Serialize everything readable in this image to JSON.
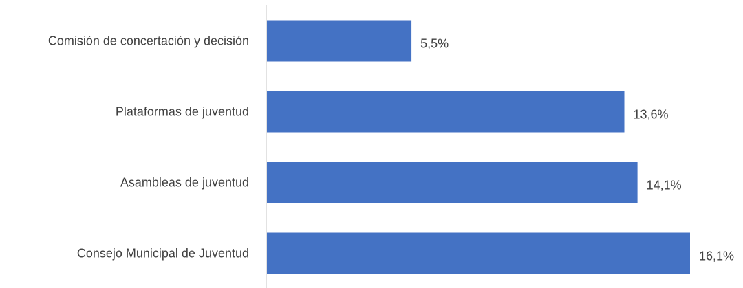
{
  "chart_data": {
    "type": "bar",
    "orientation": "horizontal",
    "categories": [
      "Comisión de concertación y decisión",
      "Plataformas de juventud",
      "Asambleas de juventud",
      "Consejo Municipal de Juventud"
    ],
    "values": [
      5.5,
      13.6,
      14.1,
      16.1
    ],
    "value_labels": [
      "5,5%",
      "13,6%",
      "14,1%",
      "16,1%"
    ],
    "title": "",
    "xlabel": "",
    "ylabel": "",
    "xlim": [
      0,
      16.1
    ],
    "grid": false,
    "legend": "none",
    "bar_color": "#4472C4",
    "axis_color": "#D9D9D9",
    "text_color": "#404040"
  }
}
